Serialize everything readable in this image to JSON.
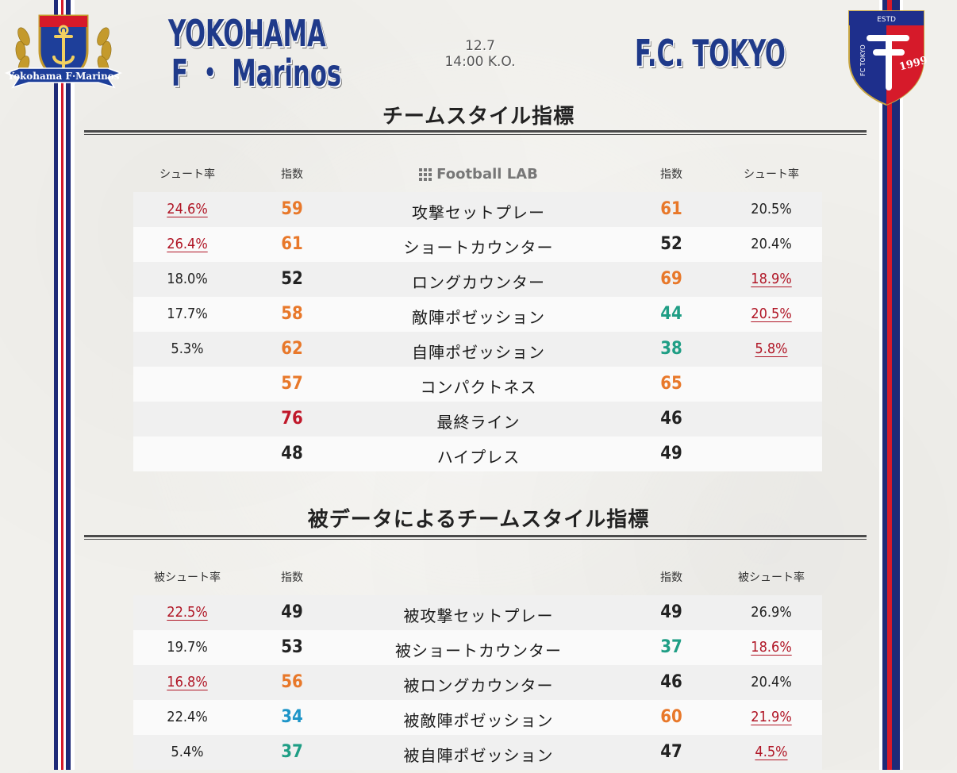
{
  "header": {
    "home": {
      "name_line1": "YOKOHAMA",
      "name_line2": "F ・ Marinos",
      "crest_text": "Yokohama F·Marinos"
    },
    "away": {
      "name": "F.C. TOKYO",
      "crest_text_1": "ESTD",
      "crest_text_2": "FC TOKYO",
      "crest_year": "1999"
    },
    "match": {
      "date": "12.7",
      "kickoff": "14:00 K.O."
    }
  },
  "colors": {
    "blue": "#1f3a8a",
    "red": "#b01525",
    "orange": "#e8782a",
    "teal": "#1f9e85",
    "sky": "#1e95c8",
    "dark": "#222222",
    "crimson": "#c0182a"
  },
  "style_section": {
    "title": "チームスタイル指標",
    "headers": {
      "home_rate": "シュート率",
      "home_index": "指数",
      "brand": "Football LAB",
      "away_index": "指数",
      "away_rate": "シュート率"
    },
    "rows": [
      {
        "label": "攻撃セットプレー",
        "home_rate": "24.6%",
        "home_rate_highlight": true,
        "home_index": "59",
        "home_color": "#e8782a",
        "away_index": "61",
        "away_color": "#e8782a",
        "away_rate": "20.5%",
        "away_rate_highlight": false
      },
      {
        "label": "ショートカウンター",
        "home_rate": "26.4%",
        "home_rate_highlight": true,
        "home_index": "61",
        "home_color": "#e8782a",
        "away_index": "52",
        "away_color": "#222222",
        "away_rate": "20.4%",
        "away_rate_highlight": false
      },
      {
        "label": "ロングカウンター",
        "home_rate": "18.0%",
        "home_rate_highlight": false,
        "home_index": "52",
        "home_color": "#222222",
        "away_index": "69",
        "away_color": "#e8782a",
        "away_rate": "18.9%",
        "away_rate_highlight": true
      },
      {
        "label": "敵陣ポゼッション",
        "home_rate": "17.7%",
        "home_rate_highlight": false,
        "home_index": "58",
        "home_color": "#e8782a",
        "away_index": "44",
        "away_color": "#1f9e85",
        "away_rate": "20.5%",
        "away_rate_highlight": true
      },
      {
        "label": "自陣ポゼッション",
        "home_rate": "5.3%",
        "home_rate_highlight": false,
        "home_index": "62",
        "home_color": "#e8782a",
        "away_index": "38",
        "away_color": "#1f9e85",
        "away_rate": "5.8%",
        "away_rate_highlight": true
      },
      {
        "label": "コンパクトネス",
        "home_rate": "",
        "home_rate_highlight": false,
        "home_index": "57",
        "home_color": "#e8782a",
        "away_index": "65",
        "away_color": "#e8782a",
        "away_rate": "",
        "away_rate_highlight": false
      },
      {
        "label": "最終ライン",
        "home_rate": "",
        "home_rate_highlight": false,
        "home_index": "76",
        "home_color": "#c0182a",
        "away_index": "46",
        "away_color": "#222222",
        "away_rate": "",
        "away_rate_highlight": false
      },
      {
        "label": "ハイプレス",
        "home_rate": "",
        "home_rate_highlight": false,
        "home_index": "48",
        "home_color": "#222222",
        "away_index": "49",
        "away_color": "#222222",
        "away_rate": "",
        "away_rate_highlight": false
      }
    ]
  },
  "conceded_section": {
    "title": "被データによるチームスタイル指標",
    "headers": {
      "home_rate": "被シュート率",
      "home_index": "指数",
      "brand": "",
      "away_index": "指数",
      "away_rate": "被シュート率"
    },
    "rows": [
      {
        "label": "被攻撃セットプレー",
        "home_rate": "22.5%",
        "home_rate_highlight": true,
        "home_index": "49",
        "home_color": "#222222",
        "away_index": "49",
        "away_color": "#222222",
        "away_rate": "26.9%",
        "away_rate_highlight": false
      },
      {
        "label": "被ショートカウンター",
        "home_rate": "19.7%",
        "home_rate_highlight": false,
        "home_index": "53",
        "home_color": "#222222",
        "away_index": "37",
        "away_color": "#1f9e85",
        "away_rate": "18.6%",
        "away_rate_highlight": true
      },
      {
        "label": "被ロングカウンター",
        "home_rate": "16.8%",
        "home_rate_highlight": true,
        "home_index": "56",
        "home_color": "#e8782a",
        "away_index": "46",
        "away_color": "#222222",
        "away_rate": "20.4%",
        "away_rate_highlight": false
      },
      {
        "label": "被敵陣ポゼッション",
        "home_rate": "22.4%",
        "home_rate_highlight": false,
        "home_index": "34",
        "home_color": "#1e95c8",
        "away_index": "60",
        "away_color": "#e8782a",
        "away_rate": "21.9%",
        "away_rate_highlight": true
      },
      {
        "label": "被自陣ポゼッション",
        "home_rate": "5.4%",
        "home_rate_highlight": false,
        "home_index": "37",
        "home_color": "#1f9e85",
        "away_index": "47",
        "away_color": "#222222",
        "away_rate": "4.5%",
        "away_rate_highlight": true
      }
    ]
  }
}
